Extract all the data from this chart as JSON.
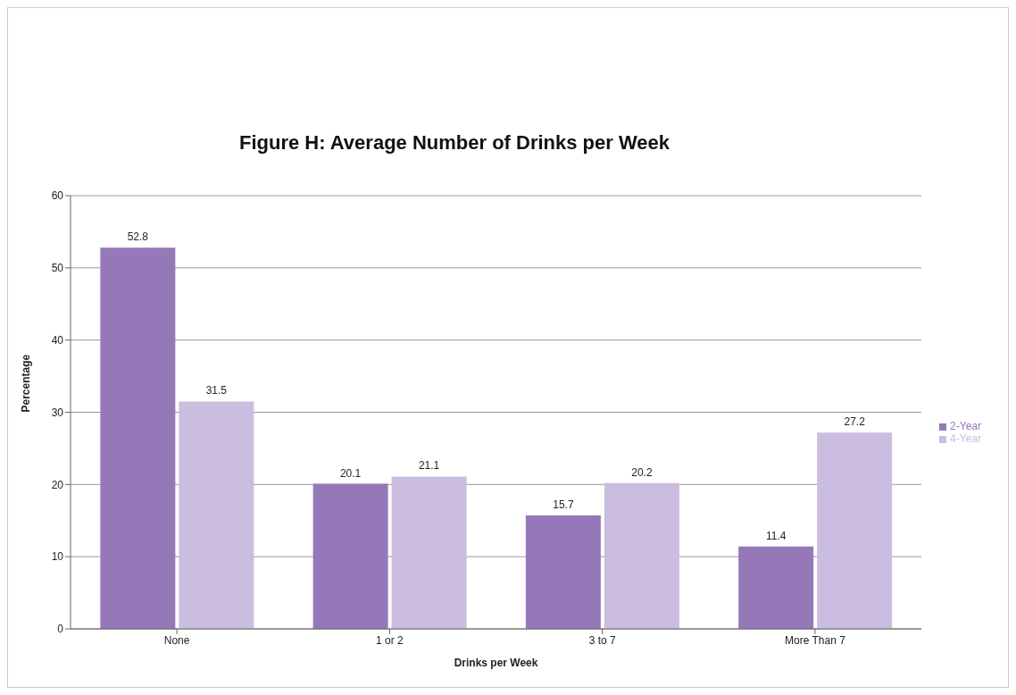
{
  "chart_data": {
    "type": "bar",
    "title": "Figure H: Average Number of Drinks per Week",
    "xlabel": "Drinks per Week",
    "ylabel": "Percentage",
    "categories": [
      "None",
      "1 or 2",
      "3 to 7",
      "More Than 7"
    ],
    "series": [
      {
        "name": "2-Year",
        "color": "#9478b8",
        "values": [
          52.8,
          20.1,
          15.7,
          11.4
        ]
      },
      {
        "name": "4-Year",
        "color": "#cbbde0",
        "values": [
          31.5,
          21.1,
          20.2,
          27.2
        ]
      }
    ],
    "ylim": [
      0,
      60
    ],
    "yticks": [
      0,
      10,
      20,
      30,
      40,
      50,
      60
    ],
    "grid": "y",
    "legend": "right",
    "data_labels": true
  }
}
